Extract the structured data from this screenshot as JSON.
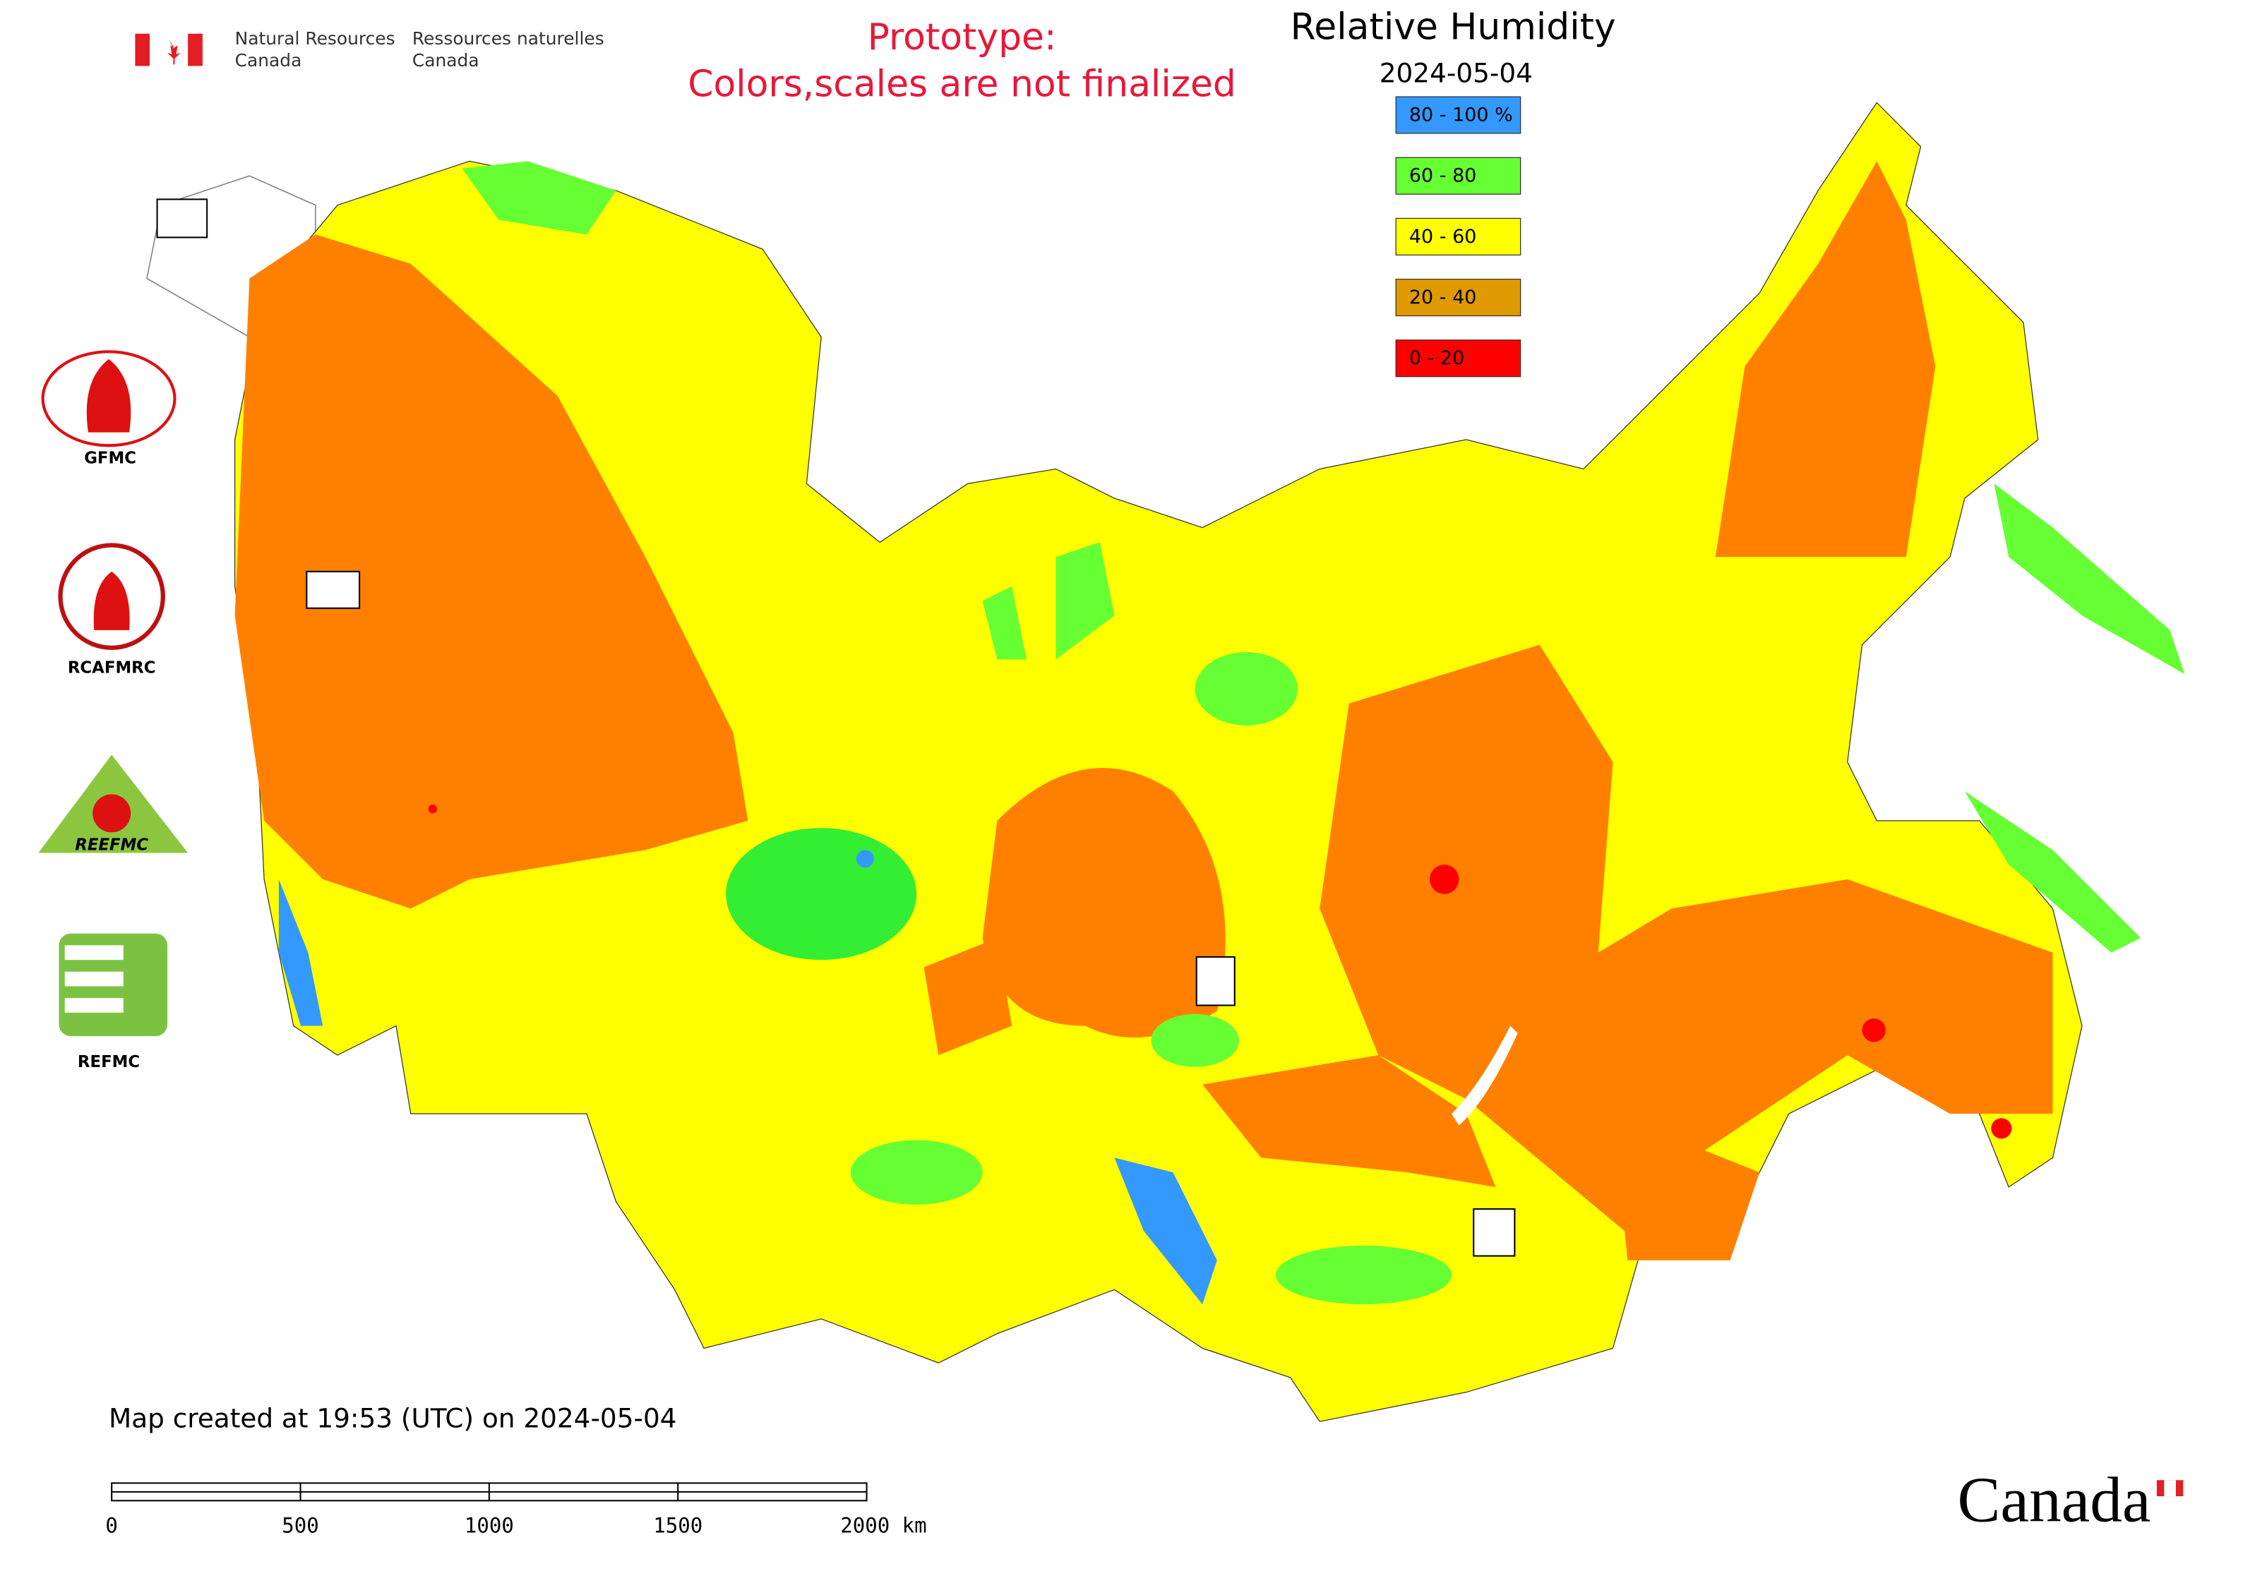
{
  "header": {
    "department_en": [
      "Natural Resources",
      "Canada"
    ],
    "department_fr": [
      "Ressources naturelles",
      "Canada"
    ],
    "notice": [
      "Prototype:",
      "Colors,scales are not finalized"
    ],
    "title": "Relative Humidity",
    "date": "2024-05-04"
  },
  "legend": [
    {
      "label": "80 - 100 %",
      "color": "#3399ff"
    },
    {
      "label": "60 - 80",
      "color": "#66ff33"
    },
    {
      "label": "40 - 60",
      "color": "#ffff00"
    },
    {
      "label": "20 - 40",
      "color": "#e09a00"
    },
    {
      "label": "0 - 20",
      "color": "#ff0000"
    }
  ],
  "logos": [
    "GFMC",
    "RCAFMRC",
    "REEFMC",
    "REFMC"
  ],
  "footer": {
    "created": "Map created at 19:53 (UTC) on 2024-05-04",
    "scale_labels": [
      "0",
      "500",
      "1000",
      "1500",
      "2000 km"
    ],
    "wordmark": "Canada"
  }
}
